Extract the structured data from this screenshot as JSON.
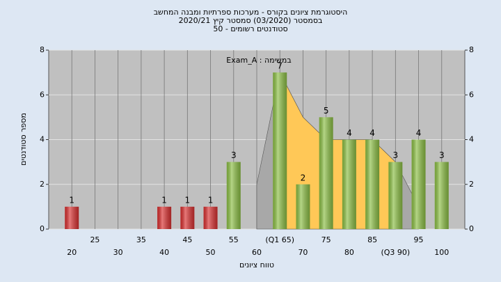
{
  "chart_data": {
    "type": "bar",
    "title_lines": [
      "היסטוגרמת ציונים בקורס - מערכות ספרתיות ומבנה המחשב",
      "בסמסטר  (03/2020)  סמסטר קיץ  2020/21",
      "סטודנטים רשומים - 50"
    ],
    "annotation": "Exam_A : במשימה",
    "y_label": "מספר סטודנטים",
    "x_label": "טווח ציונים",
    "categories": [
      "20",
      "25",
      "30",
      "35",
      "40",
      "45",
      "50",
      "55",
      "60",
      "(Q1 65)",
      "70",
      "75",
      "80",
      "85",
      "(Q3 90)",
      "95",
      "100"
    ],
    "values": [
      1,
      0,
      0,
      0,
      1,
      1,
      1,
      3,
      0,
      7,
      2,
      5,
      4,
      4,
      3,
      4,
      3
    ],
    "colors": [
      "#d93030",
      "#d93030",
      "#d93030",
      "#d93030",
      "#d93030",
      "#d93030",
      "#d93030",
      "#8cbf45",
      "#8cbf45",
      "#8cbf45",
      "#8cbf45",
      "#8cbf45",
      "#8cbf45",
      "#8cbf45",
      "#8cbf45",
      "#8cbf45",
      "#8cbf45"
    ],
    "overlay": {
      "values": [
        null,
        null,
        null,
        null,
        null,
        null,
        null,
        null,
        2,
        7,
        5,
        4,
        4,
        4,
        3,
        1,
        null
      ],
      "color": "#a8a8a8"
    },
    "highlight": {
      "values": [
        null,
        null,
        null,
        null,
        null,
        null,
        null,
        null,
        null,
        7,
        5,
        4,
        4,
        4,
        3,
        null,
        null
      ],
      "color": "#ffc857"
    },
    "ylim": [
      0,
      8
    ],
    "yticks": [
      0,
      2,
      4,
      6,
      8
    ],
    "grid": true
  }
}
